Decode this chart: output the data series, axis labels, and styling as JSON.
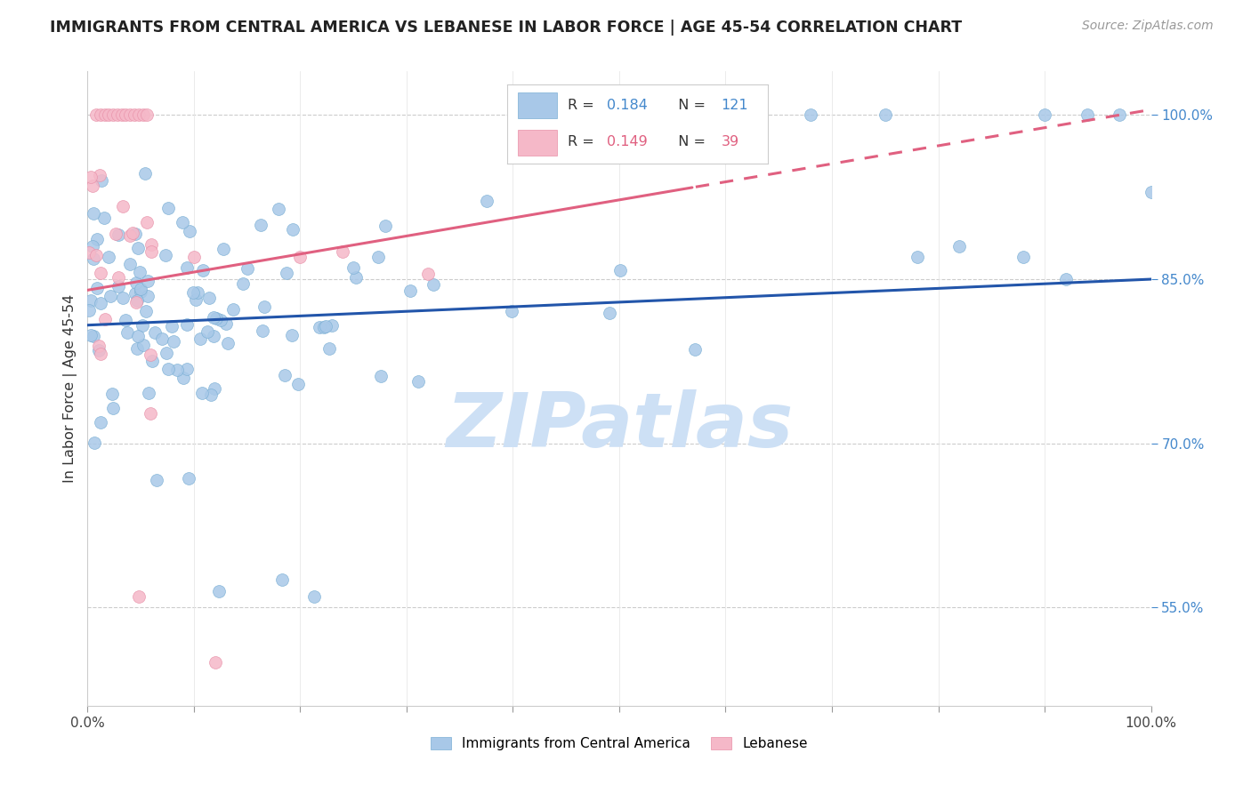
{
  "title": "IMMIGRANTS FROM CENTRAL AMERICA VS LEBANESE IN LABOR FORCE | AGE 45-54 CORRELATION CHART",
  "source": "Source: ZipAtlas.com",
  "ylabel": "In Labor Force | Age 45-54",
  "legend_blue_label": "Immigrants from Central America",
  "legend_pink_label": "Lebanese",
  "R_blue": 0.184,
  "N_blue": 121,
  "R_pink": 0.149,
  "N_pink": 39,
  "blue_color": "#a8c8e8",
  "blue_edge_color": "#7aafd4",
  "blue_line_color": "#2255aa",
  "pink_color": "#f5b8c8",
  "pink_edge_color": "#e890a8",
  "pink_line_color": "#e06080",
  "watermark_color": "#cde0f5",
  "xlim": [
    0.0,
    1.0
  ],
  "ylim": [
    0.46,
    1.04
  ],
  "y_ticks": [
    0.55,
    0.7,
    0.85,
    1.0
  ],
  "y_tick_labels": [
    "55.0%",
    "70.0%",
    "85.0%",
    "100.0%"
  ],
  "blue_line_x0": 0.0,
  "blue_line_y0": 0.808,
  "blue_line_x1": 1.0,
  "blue_line_y1": 0.85,
  "pink_line_x0": 0.0,
  "pink_line_y0": 0.84,
  "pink_line_x1": 1.0,
  "pink_line_y1": 1.005
}
